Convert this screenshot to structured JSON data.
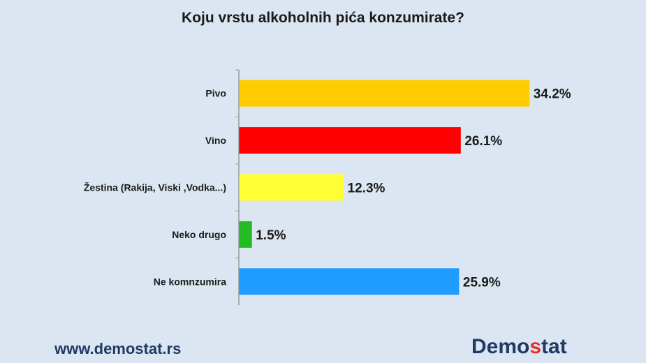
{
  "chart_data": {
    "type": "bar",
    "orientation": "horizontal",
    "title": "Koju vrstu alkoholnih pića konzumirate?",
    "categories": [
      "Pivo",
      "Vino",
      "Žestina (Rakija, Viski ,Vodka...)",
      "Neko drugo",
      "Ne komnzumira"
    ],
    "values": [
      34.2,
      26.1,
      12.3,
      1.5,
      25.9
    ],
    "value_labels": [
      "34.2%",
      "26.1%",
      "12.3%",
      "1.5%",
      "25.9%"
    ],
    "colors": [
      "#ffcc00",
      "#ff0000",
      "#ffff33",
      "#22bb22",
      "#1e9cff"
    ],
    "xlim": [
      0,
      38
    ],
    "xlabel": "",
    "ylabel": "",
    "grid": false,
    "legend": "none"
  },
  "footer": {
    "url": "www.demostat.rs",
    "logo_main": "Demo",
    "logo_accent": "s",
    "logo_rest": "tat"
  }
}
